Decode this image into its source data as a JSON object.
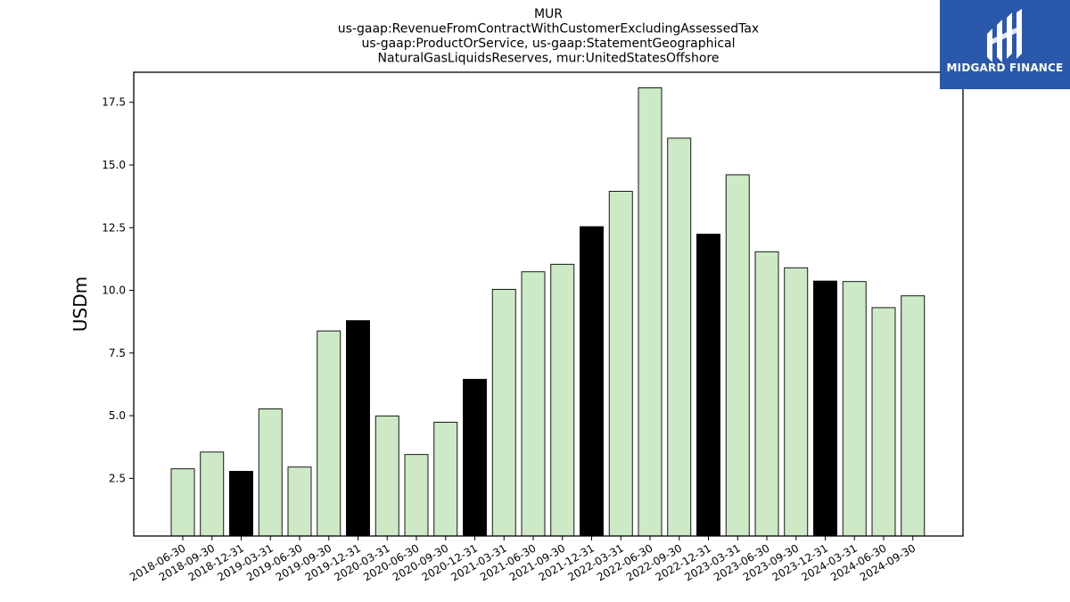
{
  "chart_data": {
    "type": "bar",
    "title_lines": [
      "MUR",
      "us-gaap:RevenueFromContractWithCustomerExcludingAssessedTax",
      "us-gaap:ProductOrService, us-gaap:StatementGeographical",
      "NaturalGasLiquidsReserves, mur:UnitedStatesOffshore"
    ],
    "xlabel": "",
    "ylabel": "USDm",
    "ylim": [
      0.2,
      18.7
    ],
    "yticks": [
      2.5,
      5.0,
      7.5,
      10.0,
      12.5,
      15.0,
      17.5
    ],
    "categories": [
      "2018-06-30",
      "2018-09-30",
      "2018-12-31",
      "2019-03-31",
      "2019-06-30",
      "2019-09-30",
      "2019-12-31",
      "2020-03-31",
      "2020-06-30",
      "2020-09-30",
      "2020-12-31",
      "2021-03-31",
      "2021-06-30",
      "2021-09-30",
      "2021-12-31",
      "2022-03-31",
      "2022-06-30",
      "2022-09-30",
      "2022-12-31",
      "2023-03-31",
      "2023-06-30",
      "2023-09-30",
      "2023-12-31",
      "2024-03-31",
      "2024-06-30",
      "2024-09-30"
    ],
    "values": [
      2.88,
      3.55,
      2.78,
      5.27,
      2.95,
      8.38,
      8.79,
      4.99,
      3.45,
      4.74,
      6.45,
      10.04,
      10.74,
      11.04,
      12.54,
      13.95,
      18.08,
      16.07,
      12.24,
      14.61,
      11.54,
      10.9,
      10.37,
      10.35,
      9.31,
      9.78
    ],
    "highlight": [
      false,
      false,
      true,
      false,
      false,
      false,
      true,
      false,
      false,
      false,
      true,
      false,
      false,
      false,
      true,
      false,
      false,
      false,
      true,
      false,
      false,
      false,
      true,
      false,
      false,
      false
    ],
    "colors": {
      "bar": "#cde9c6",
      "highlight": "#000000",
      "edge": "#000000"
    },
    "grid": false,
    "legend": "none"
  },
  "branding": {
    "name": "MIDGARD FINANCE",
    "background": "#2a58ab",
    "icon": "midgard-logo-icon"
  }
}
